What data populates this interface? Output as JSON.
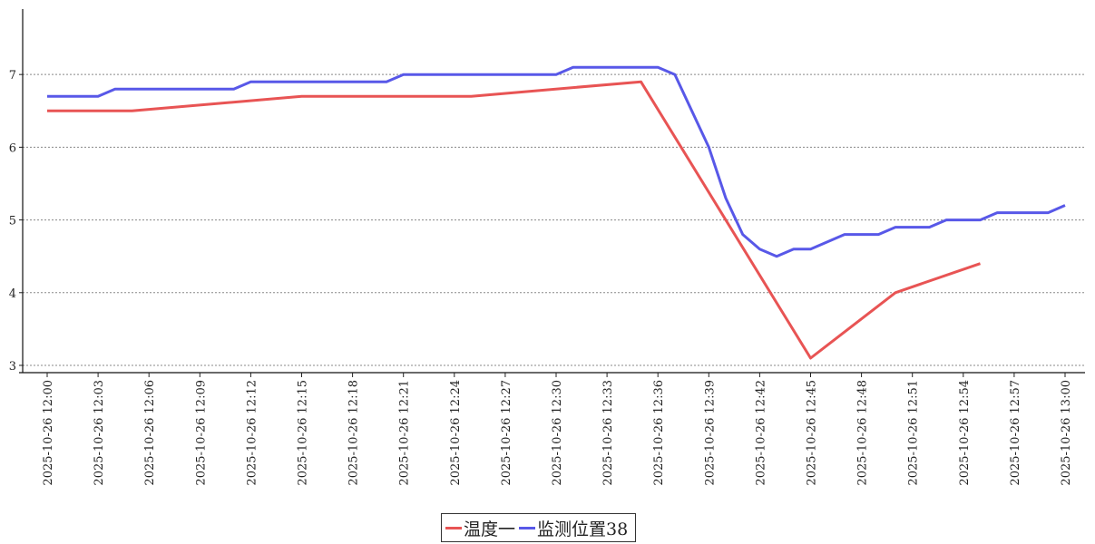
{
  "chart_data": {
    "type": "line",
    "x": [
      "2025-10-26 12:00",
      "2025-10-26 12:01",
      "2025-10-26 12:02",
      "2025-10-26 12:03",
      "2025-10-26 12:04",
      "2025-10-26 12:05",
      "2025-10-26 12:06",
      "2025-10-26 12:07",
      "2025-10-26 12:08",
      "2025-10-26 12:09",
      "2025-10-26 12:10",
      "2025-10-26 12:11",
      "2025-10-26 12:12",
      "2025-10-26 12:13",
      "2025-10-26 12:14",
      "2025-10-26 12:15",
      "2025-10-26 12:16",
      "2025-10-26 12:17",
      "2025-10-26 12:18",
      "2025-10-26 12:19",
      "2025-10-26 12:20",
      "2025-10-26 12:21",
      "2025-10-26 12:22",
      "2025-10-26 12:23",
      "2025-10-26 12:24",
      "2025-10-26 12:25",
      "2025-10-26 12:26",
      "2025-10-26 12:27",
      "2025-10-26 12:28",
      "2025-10-26 12:29",
      "2025-10-26 12:30",
      "2025-10-26 12:31",
      "2025-10-26 12:32",
      "2025-10-26 12:33",
      "2025-10-26 12:34",
      "2025-10-26 12:35",
      "2025-10-26 12:36",
      "2025-10-26 12:37",
      "2025-10-26 12:38",
      "2025-10-26 12:39",
      "2025-10-26 12:40",
      "2025-10-26 12:41",
      "2025-10-26 12:42",
      "2025-10-26 12:43",
      "2025-10-26 12:44",
      "2025-10-26 12:45",
      "2025-10-26 12:46",
      "2025-10-26 12:47",
      "2025-10-26 12:48",
      "2025-10-26 12:49",
      "2025-10-26 12:50",
      "2025-10-26 12:51",
      "2025-10-26 12:52",
      "2025-10-26 12:53",
      "2025-10-26 12:54",
      "2025-10-26 12:55",
      "2025-10-26 12:56",
      "2025-10-26 12:57",
      "2025-10-26 12:58",
      "2025-10-26 12:59",
      "2025-10-26 13:00"
    ],
    "x_tick_labels": [
      "2025-10-26 12:00",
      "2025-10-26 12:03",
      "2025-10-26 12:06",
      "2025-10-26 12:09",
      "2025-10-26 12:12",
      "2025-10-26 12:15",
      "2025-10-26 12:18",
      "2025-10-26 12:21",
      "2025-10-26 12:24",
      "2025-10-26 12:27",
      "2025-10-26 12:30",
      "2025-10-26 12:33",
      "2025-10-26 12:36",
      "2025-10-26 12:39",
      "2025-10-26 12:42",
      "2025-10-26 12:45",
      "2025-10-26 12:48",
      "2025-10-26 12:51",
      "2025-10-26 12:54",
      "2025-10-26 12:57",
      "2025-10-26 13:00"
    ],
    "y_ticks": [
      3,
      4,
      5,
      6,
      7
    ],
    "ylim": [
      2.9,
      7.9
    ],
    "grid": "horizontal-dotted",
    "legend_position": "bottom-center",
    "series": [
      {
        "name": "温度一",
        "color": "#e85454",
        "points": [
          [
            "2025-10-26 12:00",
            6.5
          ],
          [
            "2025-10-26 12:05",
            6.5
          ],
          [
            "2025-10-26 12:15",
            6.7
          ],
          [
            "2025-10-26 12:25",
            6.7
          ],
          [
            "2025-10-26 12:35",
            6.9
          ],
          [
            "2025-10-26 12:45",
            3.1
          ],
          [
            "2025-10-26 12:50",
            4.0
          ],
          [
            "2025-10-26 12:55",
            4.4
          ]
        ]
      },
      {
        "name": "监测位置38",
        "color": "#5858e8",
        "points": [
          [
            "2025-10-26 12:00",
            6.7
          ],
          [
            "2025-10-26 12:03",
            6.7
          ],
          [
            "2025-10-26 12:04",
            6.8
          ],
          [
            "2025-10-26 12:11",
            6.8
          ],
          [
            "2025-10-26 12:12",
            6.9
          ],
          [
            "2025-10-26 12:20",
            6.9
          ],
          [
            "2025-10-26 12:21",
            7.0
          ],
          [
            "2025-10-26 12:30",
            7.0
          ],
          [
            "2025-10-26 12:31",
            7.1
          ],
          [
            "2025-10-26 12:36",
            7.1
          ],
          [
            "2025-10-26 12:37",
            7.0
          ],
          [
            "2025-10-26 12:39",
            6.0
          ],
          [
            "2025-10-26 12:40",
            5.3
          ],
          [
            "2025-10-26 12:41",
            4.8
          ],
          [
            "2025-10-26 12:42",
            4.6
          ],
          [
            "2025-10-26 12:43",
            4.5
          ],
          [
            "2025-10-26 12:44",
            4.6
          ],
          [
            "2025-10-26 12:45",
            4.6
          ],
          [
            "2025-10-26 12:47",
            4.8
          ],
          [
            "2025-10-26 12:49",
            4.8
          ],
          [
            "2025-10-26 12:50",
            4.9
          ],
          [
            "2025-10-26 12:52",
            4.9
          ],
          [
            "2025-10-26 12:53",
            5.0
          ],
          [
            "2025-10-26 12:55",
            5.0
          ],
          [
            "2025-10-26 12:56",
            5.1
          ],
          [
            "2025-10-26 12:59",
            5.1
          ],
          [
            "2025-10-26 13:00",
            5.2
          ]
        ]
      }
    ]
  }
}
